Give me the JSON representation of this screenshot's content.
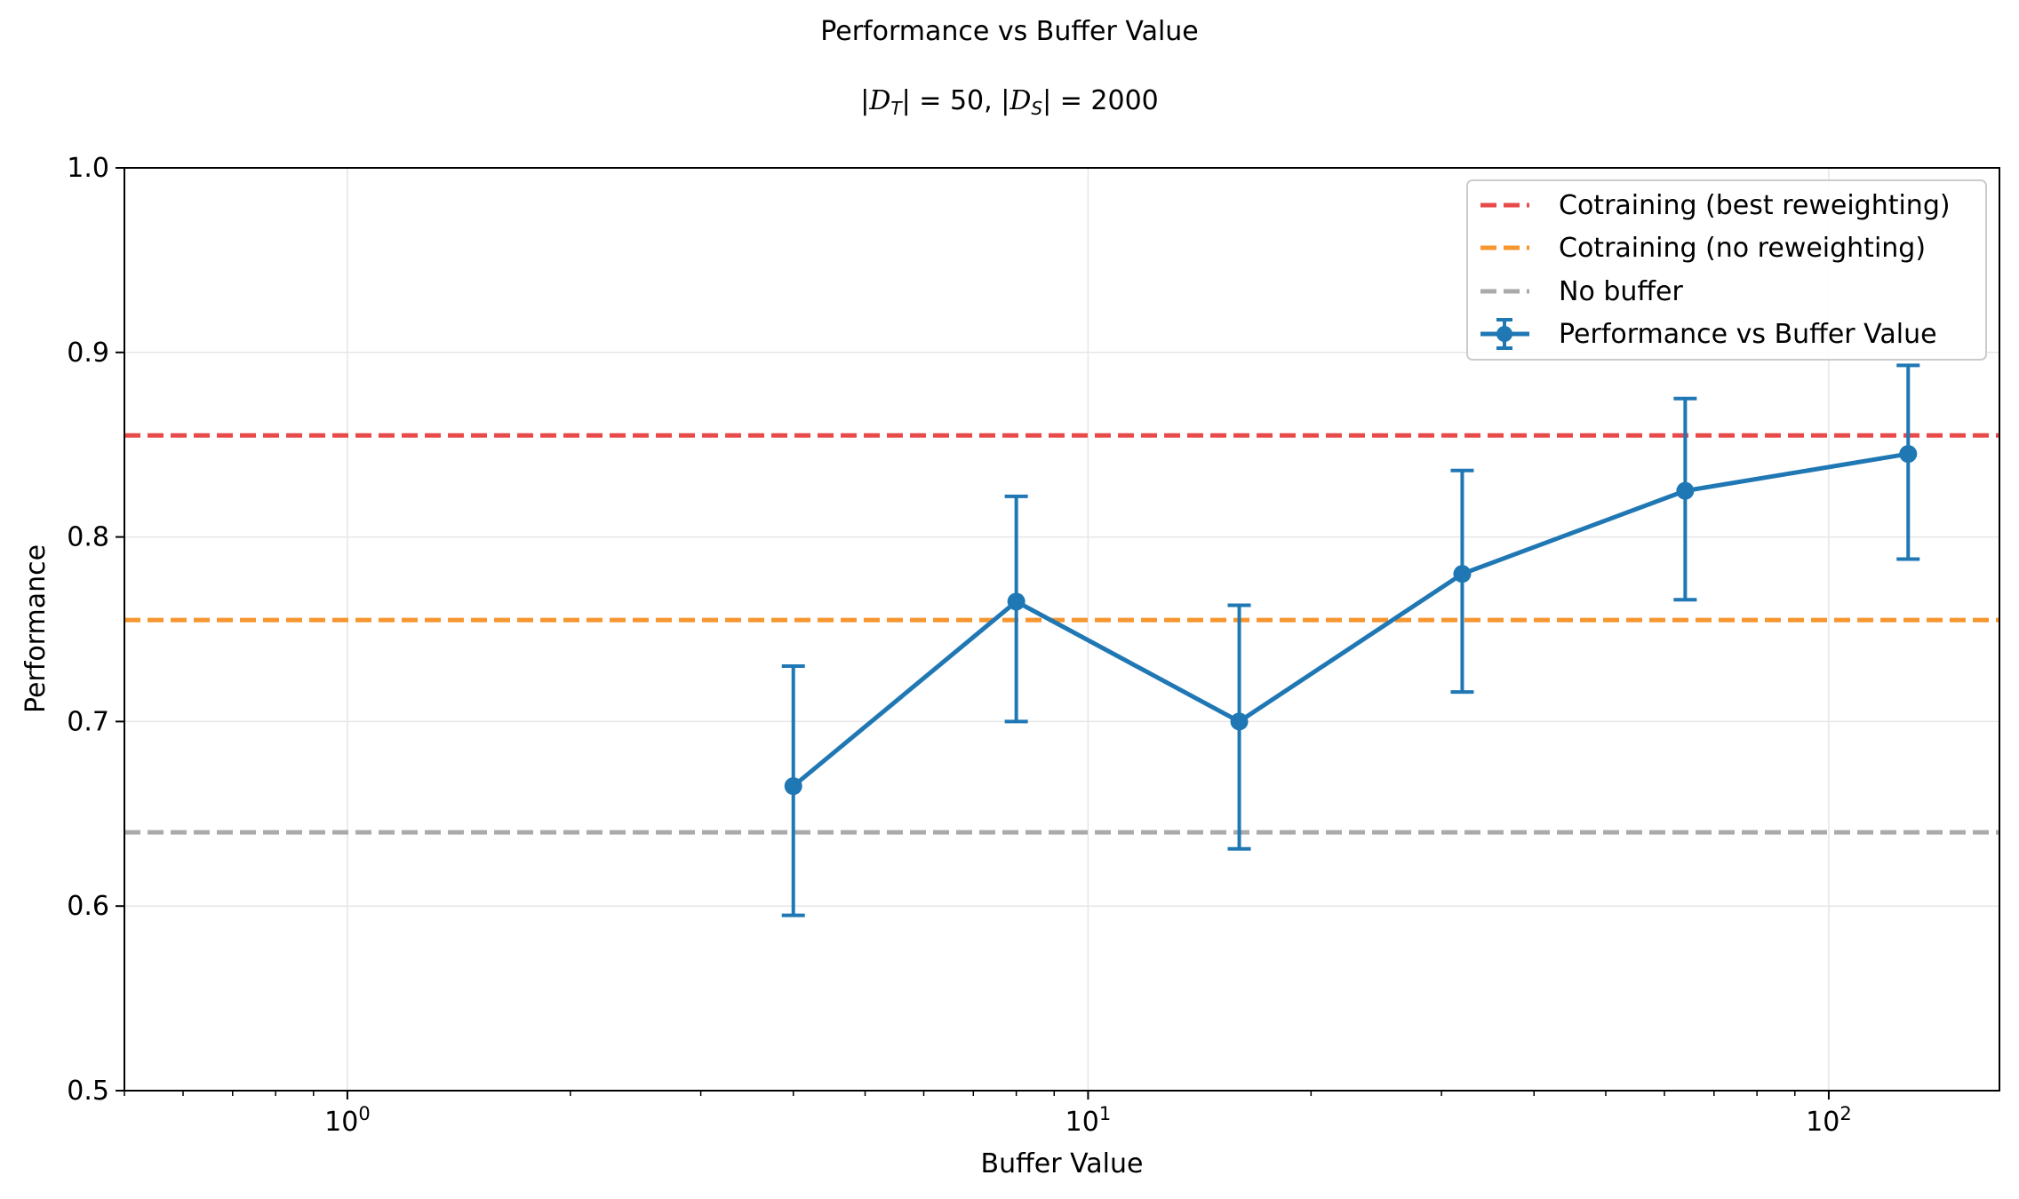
{
  "chart_data": {
    "type": "line",
    "title": "Performance vs Buffer Value",
    "subtitle_parts": [
      "|",
      "D",
      "T",
      "| = 50, |",
      "D",
      "S",
      "| = 2000"
    ],
    "xlabel": "Buffer Value",
    "ylabel": "Performance",
    "xscale": "log",
    "xlim": [
      0.5,
      170
    ],
    "ylim": [
      0.5,
      1.0
    ],
    "grid": true,
    "yticks": [
      0.5,
      0.6,
      0.7,
      0.8,
      0.9,
      1.0
    ],
    "ytick_labels": [
      "0.5",
      "0.6",
      "0.7",
      "0.8",
      "0.9",
      "1.0"
    ],
    "xticks": [
      1,
      10,
      100
    ],
    "xtick_labels": [
      {
        "base": "10",
        "exp": "0"
      },
      {
        "base": "10",
        "exp": "1"
      },
      {
        "base": "10",
        "exp": "2"
      }
    ],
    "legend_placement": "top-right",
    "reference_lines": [
      {
        "name": "Cotraining (best reweighting)",
        "y": 0.855,
        "color": "#e84a4a"
      },
      {
        "name": "Cotraining (no reweighting)",
        "y": 0.755,
        "color": "#f7962f"
      },
      {
        "name": "No buffer",
        "y": 0.64,
        "color": "#aaaaaa"
      }
    ],
    "series": [
      {
        "name": "Performance vs Buffer Value",
        "color": "#1f77b4",
        "x": [
          4,
          8,
          16,
          32,
          64,
          128
        ],
        "y": [
          0.665,
          0.765,
          0.7,
          0.78,
          0.825,
          0.845
        ],
        "yerr_low": [
          0.595,
          0.7,
          0.631,
          0.716,
          0.766,
          0.788
        ],
        "yerr_high": [
          0.73,
          0.822,
          0.763,
          0.836,
          0.875,
          0.893
        ]
      }
    ]
  }
}
